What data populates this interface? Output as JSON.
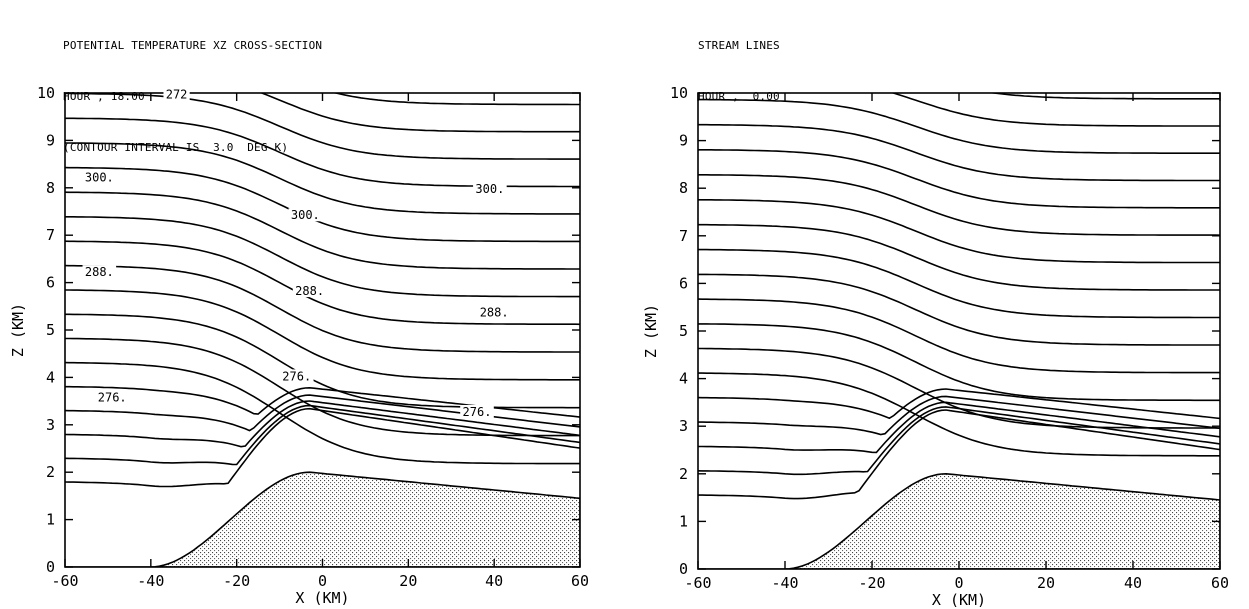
{
  "panels": {
    "left": {
      "title": "POTENTIAL TEMPERATURE XZ CROSS-SECTION",
      "hour": "HOUR , 18.00",
      "interval": "(CONTOUR INTERVAL IS  3.0  DEG K)"
    },
    "right": {
      "title": "STREAM LINES",
      "hour": "HOUR ,  0.00"
    }
  },
  "chart_data": [
    {
      "type": "contour",
      "title": "POTENTIAL TEMPERATURE XZ CROSS-SECTION",
      "xlabel": "X (KM)",
      "ylabel": "Z (KM)",
      "xlim": [
        -60,
        60
      ],
      "ylim": [
        0,
        10
      ],
      "x_tick_labels": [
        "-60",
        "-40",
        "-20",
        "0",
        "20",
        "40",
        "60"
      ],
      "y_tick_labels": [
        "0",
        "1",
        "2",
        "3",
        "4",
        "5",
        "6",
        "7",
        "8",
        "9",
        "10"
      ],
      "contour_labels": [
        {
          "text": "272",
          "x": -34,
          "z": 9.95
        },
        {
          "text": "300.",
          "x": -52,
          "z": 8.2
        },
        {
          "text": "300.",
          "x": -4,
          "z": 7.4
        },
        {
          "text": "300.",
          "x": 39,
          "z": 7.95
        },
        {
          "text": "288.",
          "x": -52,
          "z": 6.2
        },
        {
          "text": "288.",
          "x": -3,
          "z": 5.8
        },
        {
          "text": "288.",
          "x": 40,
          "z": 5.35
        },
        {
          "text": "276.",
          "x": -49,
          "z": 3.55
        },
        {
          "text": "276.",
          "x": -6,
          "z": 4.0
        },
        {
          "text": "276.",
          "x": 36,
          "z": 3.25
        }
      ],
      "terrain": {
        "shading": "stippled"
      }
    },
    {
      "type": "streamlines",
      "title": "STREAM LINES",
      "xlabel": "X (KM)",
      "ylabel": "Z (KM)",
      "xlim": [
        -60,
        60
      ],
      "ylim": [
        0,
        10
      ],
      "x_tick_labels": [
        "-60",
        "-40",
        "-20",
        "0",
        "20",
        "40",
        "60"
      ],
      "y_tick_labels": [
        "0",
        "1",
        "2",
        "3",
        "4",
        "5",
        "6",
        "7",
        "8",
        "9",
        "10"
      ],
      "terrain": {
        "shading": "stippled"
      }
    }
  ]
}
